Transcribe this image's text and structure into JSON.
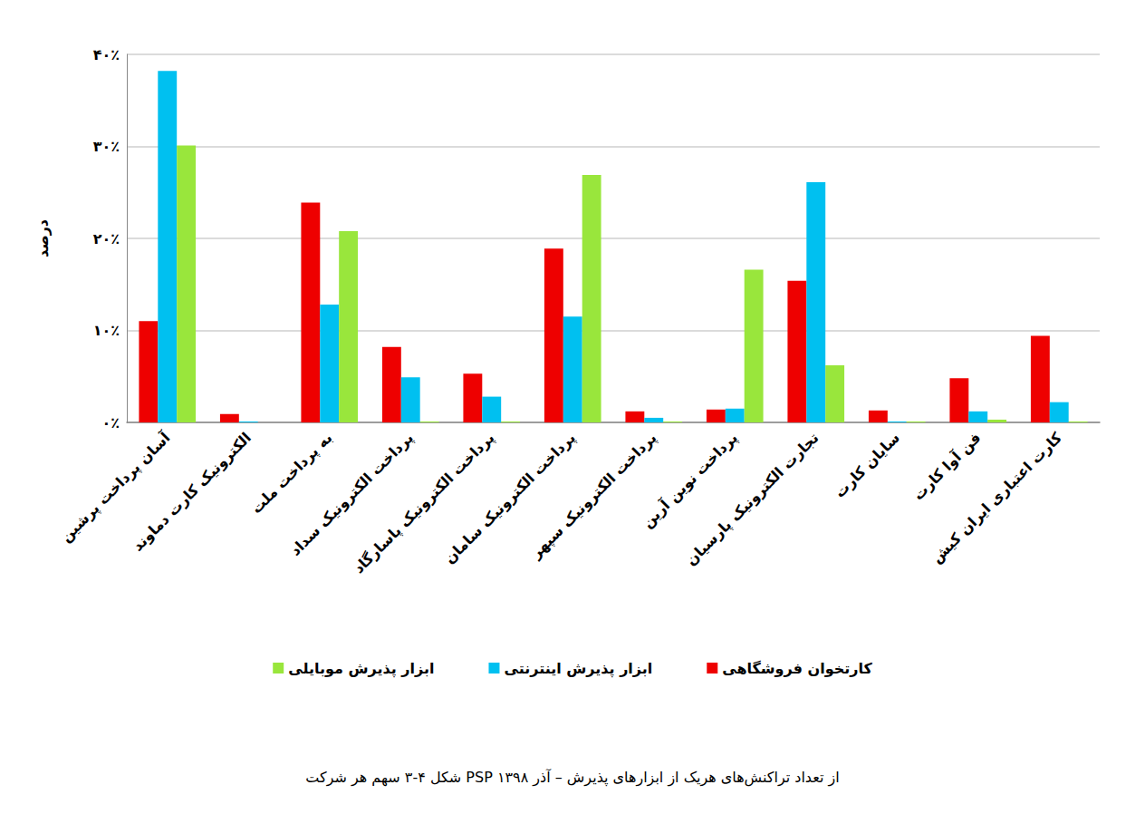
{
  "chart_data": {
    "type": "bar",
    "title": "شکل ۴-۳ سهم هر شرکت PSP از تعداد تراکنش‌های هریک از ابزارهای پذیرش – آذر ۱۳۹۸",
    "y_label": "درصد",
    "categories": [
      "آسان پرداخت پرشین",
      "الکترونیک کارت دماوند",
      "به پرداخت ملت",
      "پرداخت الکترونیک سداد",
      "پرداخت الکترونیک پاسارگاد",
      "پرداخت الکترونیک سامان",
      "پرداخت الکترونیک سپهر",
      "پرداخت نوین آرین",
      "تجارت الکترونیک پارسیان",
      "سایان کارت",
      "فن آوا کارت",
      "کارت اعتباری ایران کیش"
    ],
    "series": [
      {
        "name": "کارتخوان فروشگاهی",
        "color": "#ee0000",
        "values": [
          11.0,
          0.9,
          23.9,
          8.2,
          5.3,
          18.9,
          1.2,
          1.4,
          15.4,
          1.3,
          4.8,
          9.4
        ]
      },
      {
        "name": "ابزار پذیرش اینترنتی",
        "color": "#00c0f0",
        "values": [
          38.2,
          0.1,
          12.8,
          4.9,
          2.8,
          11.5,
          0.5,
          1.5,
          26.1,
          0.1,
          1.2,
          2.2
        ]
      },
      {
        "name": "ابزار پذیرش موبایلی",
        "color": "#99e63c",
        "values": [
          30.1,
          0,
          20.8,
          0.1,
          0.1,
          26.9,
          0.1,
          16.6,
          6.2,
          0.1,
          0.3,
          0.1
        ]
      }
    ],
    "ylim": [
      0,
      40
    ],
    "yticks": [
      {
        "value": 0,
        "label": "۰٪"
      },
      {
        "value": 10,
        "label": "۱۰٪"
      },
      {
        "value": 20,
        "label": "۲۰٪"
      },
      {
        "value": 30,
        "label": "۳۰٪"
      },
      {
        "value": 40,
        "label": "۴۰٪"
      }
    ],
    "grid": true,
    "legend": "bottom"
  }
}
